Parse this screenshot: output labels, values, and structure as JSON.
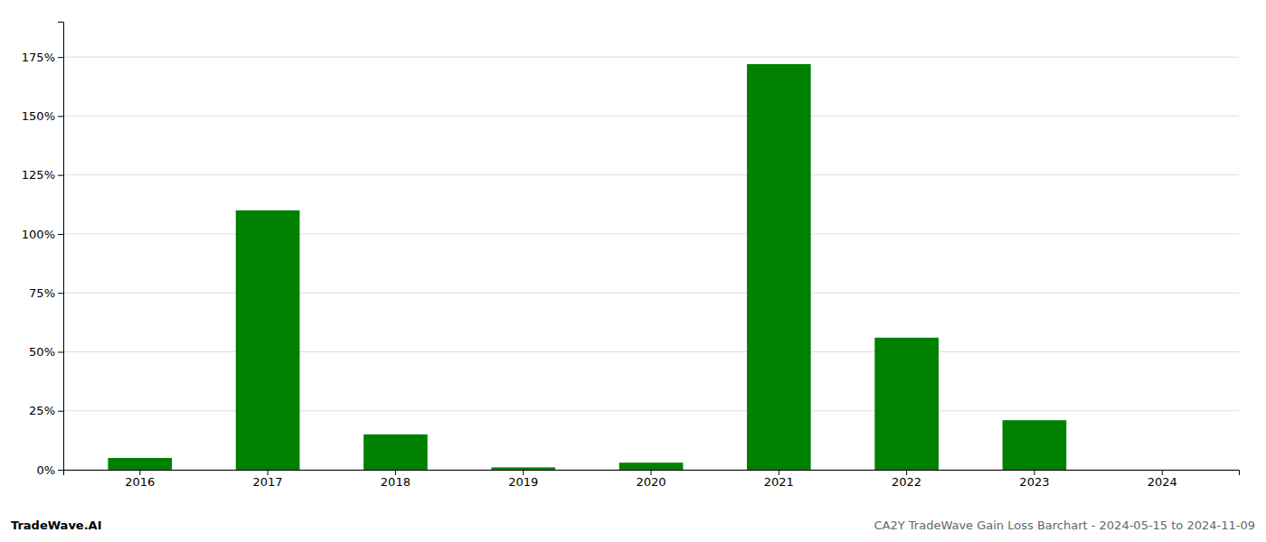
{
  "chart_data": {
    "type": "bar",
    "title": "CA2Y TradeWave Gain Loss Barchart - 2024-05-15 to 2024-11-09",
    "annotations": [
      "TradeWave.AI"
    ],
    "categories": [
      "2016",
      "2017",
      "2018",
      "2019",
      "2020",
      "2021",
      "2022",
      "2023",
      "2024"
    ],
    "values": [
      0.05,
      1.1,
      0.15,
      0.01,
      0.03,
      1.72,
      0.56,
      0.21,
      0.0
    ],
    "color": "#008000",
    "ylim": [
      0,
      1.9
    ],
    "yticks": [
      {
        "value": 0.0,
        "label": "0%"
      },
      {
        "value": 0.25,
        "label": "25%"
      },
      {
        "value": 0.5,
        "label": "50%"
      },
      {
        "value": 0.75,
        "label": "75%"
      },
      {
        "value": 1.0,
        "label": "100%"
      },
      {
        "value": 1.25,
        "label": "125%"
      },
      {
        "value": 1.5,
        "label": "150%"
      },
      {
        "value": 1.75,
        "label": "175%"
      }
    ],
    "grid": true
  }
}
